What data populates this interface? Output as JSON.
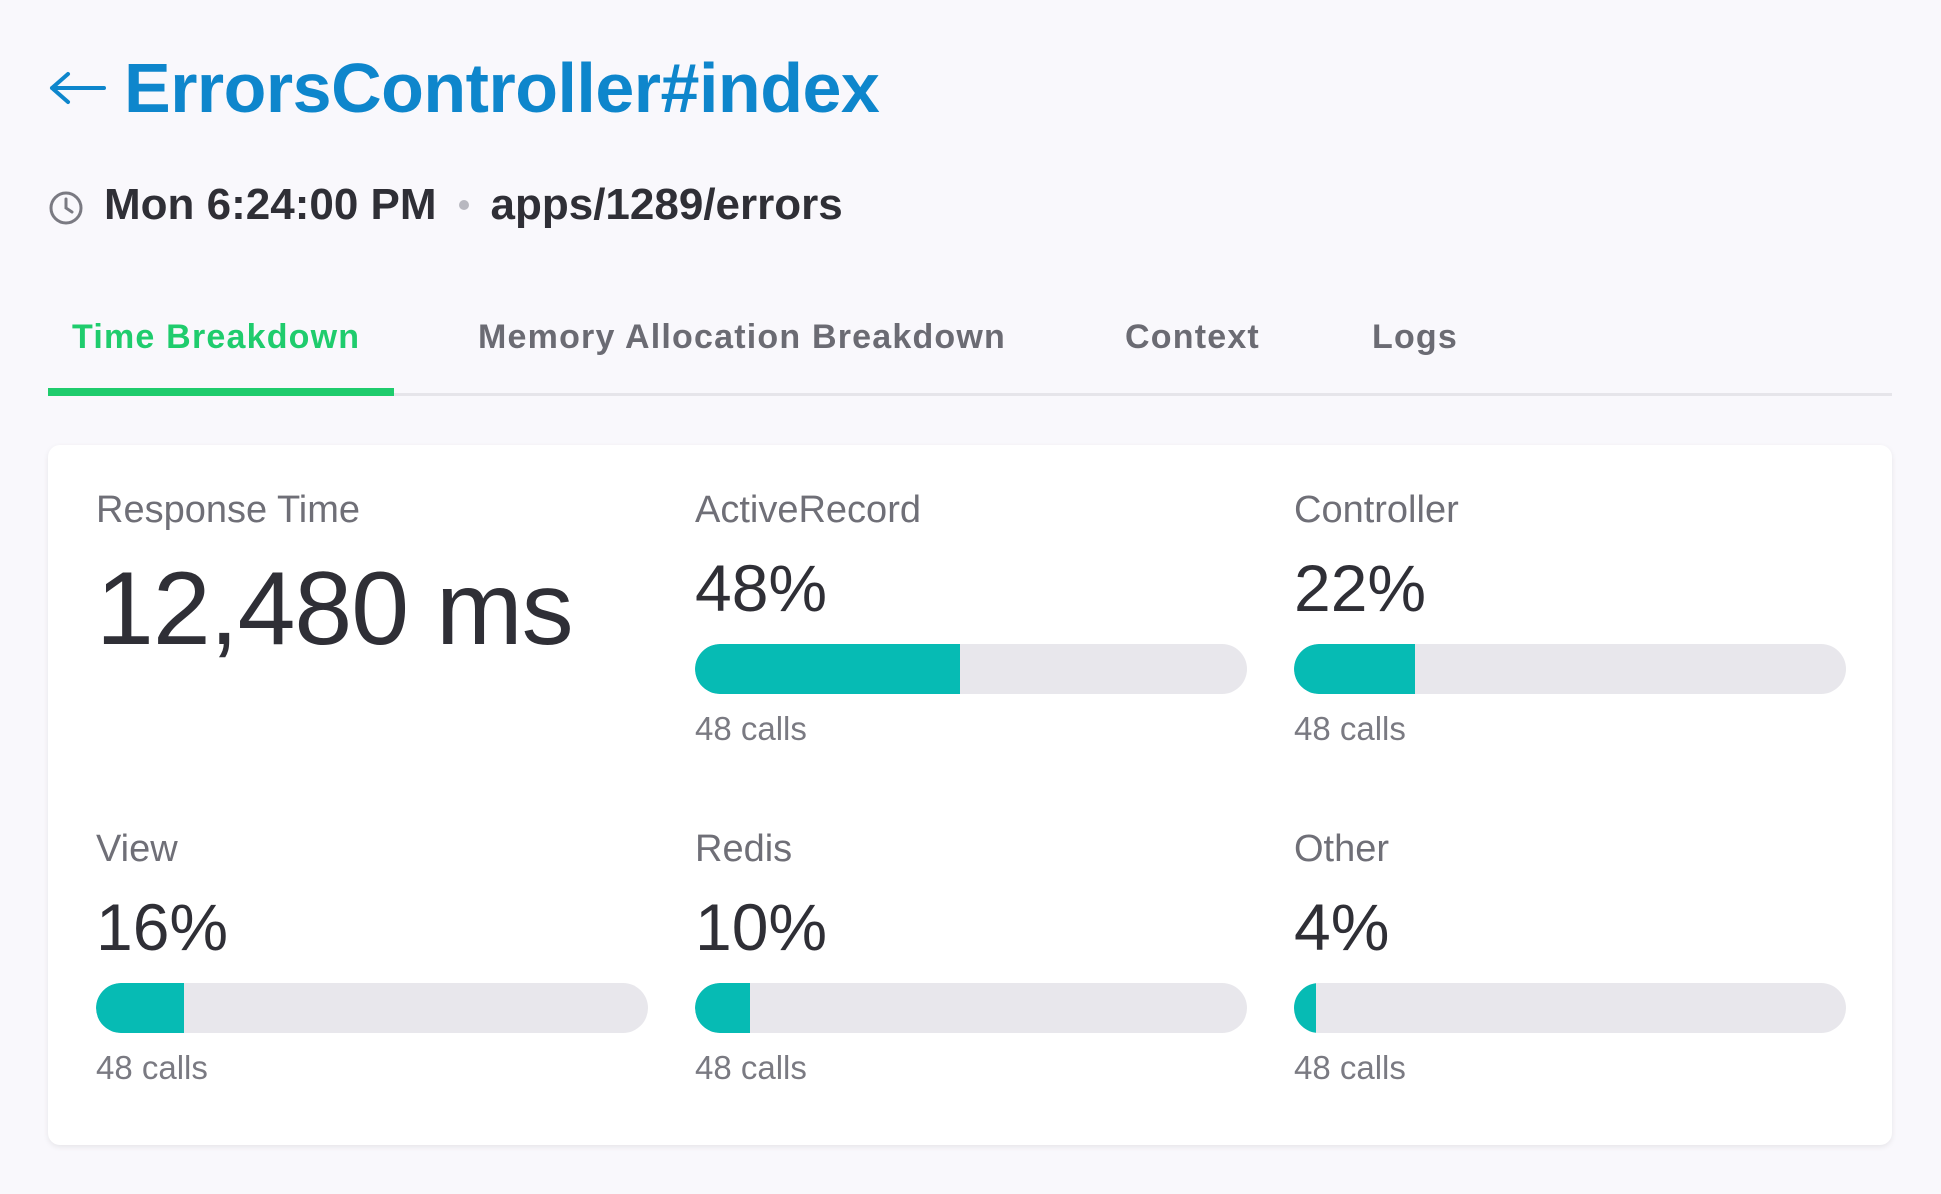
{
  "header": {
    "back_icon": "arrow-left-icon",
    "title": "ErrorsController#index"
  },
  "meta": {
    "clock_icon": "clock-icon",
    "timestamp": "Mon 6:24:00 PM",
    "separator": "•",
    "path": "apps/1289/errors"
  },
  "tabs": [
    {
      "label": "Time Breakdown",
      "active": true
    },
    {
      "label": "Memory Allocation Breakdown",
      "active": false
    },
    {
      "label": "Context",
      "active": false
    },
    {
      "label": "Logs",
      "active": false
    }
  ],
  "colors": {
    "title": "#0e86cc",
    "active_tab": "#1fcc6d",
    "bar_fill": "#06bbb4",
    "bar_track": "#e8e7ec"
  },
  "response_time": {
    "label": "Response Time",
    "value": "12,480 ms"
  },
  "metrics": [
    {
      "label": "ActiveRecord",
      "percent_text": "48%",
      "percent": 48,
      "calls": "48 calls"
    },
    {
      "label": "Controller",
      "percent_text": "22%",
      "percent": 22,
      "calls": "48 calls"
    },
    {
      "label": "View",
      "percent_text": "16%",
      "percent": 16,
      "calls": "48 calls"
    },
    {
      "label": "Redis",
      "percent_text": "10%",
      "percent": 10,
      "calls": "48 calls"
    },
    {
      "label": "Other",
      "percent_text": "4%",
      "percent": 4,
      "calls": "48 calls"
    }
  ]
}
